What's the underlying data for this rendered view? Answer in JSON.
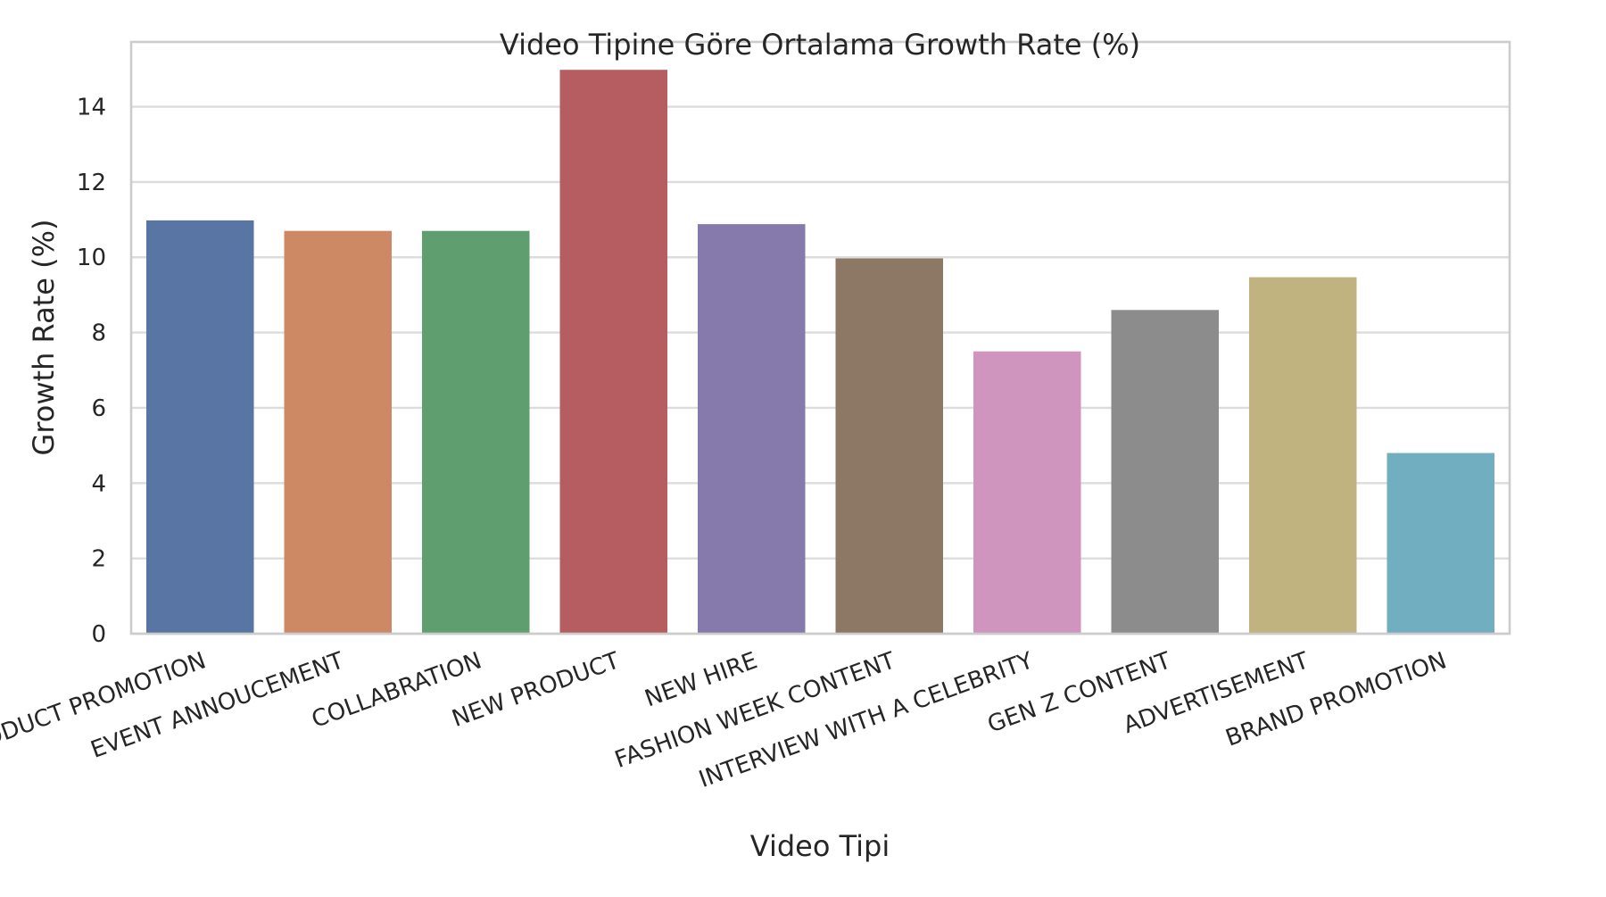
{
  "chart_data": {
    "type": "bar",
    "title": "Video Tipine Göre Ortalama Growth Rate (%)",
    "xlabel": "Video Tipi",
    "ylabel": "Growth Rate (%)",
    "categories": [
      "PRODUCT PROMOTION",
      "EVENT ANNOUCEMENT",
      "COLLABRATION",
      "NEW PRODUCT",
      "NEW HIRE",
      "FASHION WEEK CONTENT",
      "INTERVIEW WITH A CELEBRITY",
      "GEN Z CONTENT",
      "ADVERTISEMENT",
      "BRAND PROMOTION"
    ],
    "values": [
      10.98,
      10.7,
      10.7,
      14.98,
      10.88,
      9.97,
      7.5,
      8.6,
      9.47,
      4.8
    ],
    "colors": [
      "#5875a4",
      "#cc8963",
      "#5f9e6e",
      "#b55d60",
      "#857aab",
      "#8d7866",
      "#d095bf",
      "#8c8c8c",
      "#c1b37f",
      "#71aec0"
    ],
    "ylim": [
      0,
      15.72
    ],
    "yticks": [
      0,
      2,
      4,
      6,
      8,
      10,
      12,
      14
    ],
    "grid": "horizontal",
    "xtick_rotation": -20,
    "legend": "none"
  }
}
